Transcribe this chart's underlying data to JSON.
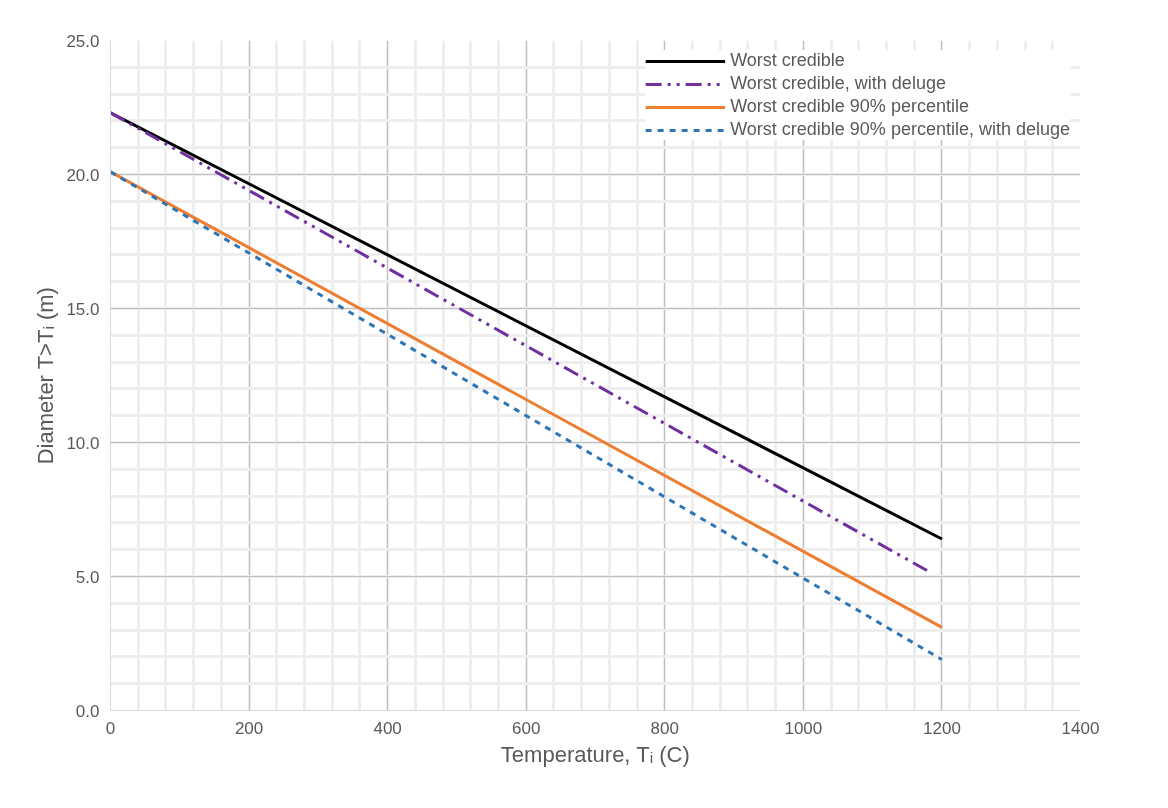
{
  "chart_data": {
    "type": "line",
    "xlabel": "Temperature, Tᵢ (C)",
    "ylabel": "Diameter T>Tᵢ (m)",
    "xlim": [
      0,
      1400
    ],
    "xticks": [
      0,
      200,
      400,
      600,
      800,
      1000,
      1200,
      1400
    ],
    "ylim": [
      0,
      25
    ],
    "yticks": [
      {
        "value": 0,
        "label": "0.0"
      },
      {
        "value": 5,
        "label": "5.0"
      },
      {
        "value": 10,
        "label": "10.0"
      },
      {
        "value": 15,
        "label": "15.0"
      },
      {
        "value": 20,
        "label": "20.0"
      },
      {
        "value": 25,
        "label": "25.0"
      }
    ],
    "grid": true,
    "legend": "top right",
    "marker": "none",
    "series": [
      {
        "name": "Worst credible",
        "color": "#000000",
        "line_style": "solid",
        "x": [
          0,
          1200
        ],
        "values": [
          22.3,
          6.4
        ]
      },
      {
        "name": "Worst credible, with deluge",
        "color": "#7030a0",
        "line_style": "dashdot",
        "x": [
          0,
          1180
        ],
        "values": [
          22.3,
          5.2
        ]
      },
      {
        "name": "Worst credible 90% percentile",
        "color": "#ed7d31",
        "line_style": "solid",
        "x": [
          0,
          1200
        ],
        "values": [
          20.1,
          3.1
        ]
      },
      {
        "name": "Worst credible 90% percentile, with deluge",
        "color": "#2e75b6",
        "line_style": "dashed",
        "x": [
          0,
          1200
        ],
        "values": [
          20.1,
          1.9
        ]
      }
    ]
  }
}
